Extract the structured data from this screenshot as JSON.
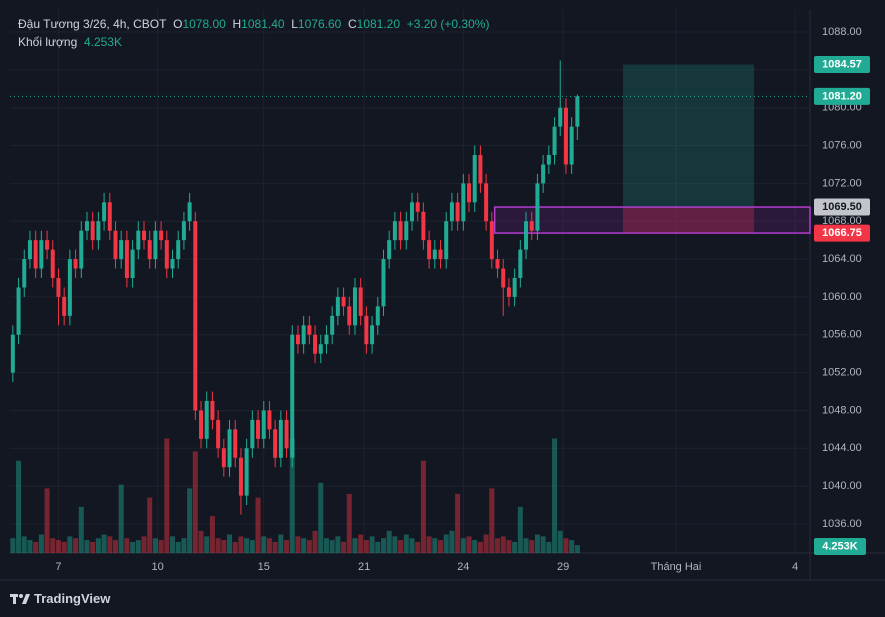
{
  "chart_data": {
    "type": "candlestick",
    "legend": {
      "symbol": "Đậu Tương 3/26, 4h, CBOT",
      "open_label": "O",
      "open": "1078.00",
      "high_label": "H",
      "high": "1081.40",
      "low_label": "L",
      "low": "1076.60",
      "close_label": "C",
      "close": "1081.20",
      "change": "+3.20 (+0.30%)",
      "volume_label": "Khối lượng",
      "volume": "4.253K"
    },
    "brand": "TradingView",
    "up_color": "#22ab94",
    "down_color": "#f23645",
    "grid": true,
    "xlim": [
      -0.5,
      139.8
    ],
    "xticks": [
      {
        "value": 8,
        "label": "7"
      },
      {
        "value": 25.4,
        "label": "10"
      },
      {
        "value": 44,
        "label": "15"
      },
      {
        "value": 61.6,
        "label": "21"
      },
      {
        "value": 79,
        "label": "24"
      },
      {
        "value": 96.5,
        "label": "29"
      },
      {
        "value": 116.3,
        "label": "Tháng Hai"
      },
      {
        "value": 137.2,
        "label": "4"
      }
    ],
    "ylim": [
      1032.93,
      1090.33
    ],
    "yticks": [
      {
        "value": 1036,
        "label": "1036.00"
      },
      {
        "value": 1040,
        "label": "1040.00"
      },
      {
        "value": 1044,
        "label": "1044.00"
      },
      {
        "value": 1048,
        "label": "1048.00"
      },
      {
        "value": 1052,
        "label": "1052.00"
      },
      {
        "value": 1056,
        "label": "1056.00"
      },
      {
        "value": 1060,
        "label": "1060.00"
      },
      {
        "value": 1064,
        "label": "1064.00"
      },
      {
        "value": 1068,
        "label": "1068.00"
      },
      {
        "value": 1072,
        "label": "1072.00"
      },
      {
        "value": 1076,
        "label": "1076.00"
      },
      {
        "value": 1080,
        "label": "1080.00"
      },
      {
        "value": 1084,
        "label": "1084.00"
      },
      {
        "value": 1088,
        "label": "1088.00"
      }
    ],
    "open": [
      1052,
      1056,
      1061,
      1064,
      1066,
      1063,
      1066,
      1065,
      1062,
      1060,
      1058,
      1064,
      1063,
      1067,
      1068,
      1066,
      1068,
      1070,
      1067,
      1064,
      1066,
      1062,
      1065,
      1067,
      1066,
      1064,
      1067,
      1066,
      1063,
      1064,
      1066,
      1068,
      1068,
      1048,
      1045,
      1049,
      1047,
      1044,
      1042,
      1046,
      1043,
      1039,
      1044,
      1047,
      1045,
      1048,
      1046,
      1043,
      1047,
      1043,
      1056,
      1055,
      1057,
      1056,
      1054,
      1055,
      1056,
      1058,
      1060,
      1059,
      1057,
      1061,
      1058,
      1055,
      1057,
      1059,
      1064,
      1066,
      1068,
      1066,
      1068,
      1070,
      1069,
      1066,
      1064,
      1065,
      1064,
      1068,
      1070,
      1068,
      1072,
      1070,
      1075,
      1072,
      1068,
      1064,
      1063,
      1061,
      1060,
      1062,
      1065,
      1068,
      1067,
      1072,
      1074,
      1075,
      1078,
      1080,
      1074,
      1078
    ],
    "high": [
      1057,
      1062,
      1065,
      1067,
      1067,
      1067,
      1067,
      1066,
      1063,
      1061,
      1065,
      1065,
      1068,
      1069,
      1069,
      1069,
      1071,
      1071,
      1068,
      1067,
      1067,
      1066,
      1068,
      1068,
      1067,
      1068,
      1068,
      1067,
      1065,
      1067,
      1069,
      1071,
      1069,
      1049,
      1050,
      1050,
      1048,
      1045,
      1047,
      1047,
      1044,
      1045,
      1048,
      1048,
      1049,
      1049,
      1047,
      1048,
      1048,
      1057,
      1057,
      1058,
      1058,
      1057,
      1056,
      1057,
      1059,
      1061,
      1061,
      1060,
      1062,
      1062,
      1059,
      1058,
      1060,
      1065,
      1067,
      1069,
      1069,
      1069,
      1071,
      1071,
      1070,
      1067,
      1066,
      1066,
      1069,
      1071,
      1071,
      1073,
      1073,
      1076,
      1076,
      1073,
      1069,
      1065,
      1064,
      1062,
      1063,
      1066,
      1069,
      1069,
      1073,
      1075,
      1076,
      1079,
      1085,
      1081,
      1079,
      1081.4
    ],
    "low": [
      1051,
      1055,
      1060,
      1063,
      1062,
      1062,
      1064,
      1061,
      1057,
      1057,
      1057,
      1062,
      1062,
      1066,
      1065,
      1065,
      1067,
      1066,
      1063,
      1063,
      1061,
      1061,
      1064,
      1065,
      1063,
      1063,
      1065,
      1062,
      1062,
      1063,
      1065,
      1067,
      1047,
      1044,
      1044,
      1046,
      1043,
      1041,
      1041,
      1042,
      1037,
      1038,
      1043,
      1044,
      1044,
      1045,
      1042,
      1042,
      1043,
      1042,
      1054,
      1054,
      1055,
      1053,
      1053,
      1054,
      1055,
      1057,
      1058,
      1056,
      1056,
      1057,
      1054,
      1054,
      1056,
      1058,
      1063,
      1065,
      1065,
      1065,
      1067,
      1068,
      1065,
      1063,
      1063,
      1063,
      1063,
      1067,
      1067,
      1067,
      1069,
      1069,
      1071,
      1067,
      1063,
      1062,
      1058,
      1059,
      1059,
      1061,
      1064,
      1066,
      1066,
      1071,
      1073,
      1074,
      1077,
      1073,
      1073,
      1076.6
    ],
    "close": [
      1056,
      1061,
      1064,
      1066,
      1063,
      1066,
      1065,
      1062,
      1060,
      1058,
      1064,
      1063,
      1067,
      1068,
      1066,
      1068,
      1070,
      1067,
      1064,
      1066,
      1062,
      1065,
      1067,
      1066,
      1064,
      1067,
      1066,
      1063,
      1064,
      1066,
      1068,
      1070,
      1048,
      1045,
      1049,
      1047,
      1044,
      1042,
      1046,
      1043,
      1039,
      1044,
      1047,
      1045,
      1048,
      1046,
      1043,
      1047,
      1044,
      1056,
      1055,
      1057,
      1056,
      1054,
      1055,
      1056,
      1058,
      1060,
      1059,
      1057,
      1061,
      1058,
      1055,
      1057,
      1059,
      1064,
      1066,
      1068,
      1066,
      1068,
      1070,
      1069,
      1066,
      1064,
      1065,
      1064,
      1068,
      1070,
      1068,
      1072,
      1070,
      1075,
      1072,
      1068,
      1064,
      1063,
      1061,
      1060,
      1062,
      1065,
      1068,
      1067,
      1072,
      1074,
      1075,
      1078,
      1080,
      1074,
      1078,
      1081.2
    ],
    "volume": [
      8,
      50,
      9,
      7,
      6,
      10,
      35,
      8,
      7,
      6,
      9,
      8,
      25,
      7,
      6,
      8,
      10,
      9,
      7,
      37,
      8,
      6,
      7,
      9,
      30,
      8,
      7,
      62,
      9,
      6,
      8,
      35,
      55,
      12,
      9,
      20,
      8,
      7,
      10,
      6,
      9,
      8,
      7,
      30,
      9,
      8,
      6,
      10,
      7,
      62,
      9,
      8,
      7,
      12,
      38,
      8,
      7,
      9,
      6,
      32,
      8,
      10,
      7,
      9,
      6,
      8,
      12,
      9,
      7,
      10,
      8,
      6,
      50,
      9,
      8,
      7,
      10,
      12,
      32,
      8,
      9,
      7,
      6,
      10,
      35,
      8,
      9,
      7,
      6,
      25,
      8,
      7,
      10,
      9,
      6,
      62,
      12,
      8,
      7,
      4.253
    ],
    "volume_lim": [
      0,
      65
    ],
    "price_labels": [
      {
        "value": 1084.57,
        "label": "1084.57",
        "color": "#22ab94",
        "text_color": "#ffffff"
      },
      {
        "value": 1081.2,
        "label": "1081.20",
        "color": "#22ab94",
        "text_color": "#ffffff"
      },
      {
        "value": 1069.5,
        "label": "1069.50",
        "color": "#c3c5cc",
        "text_color": "#131722"
      },
      {
        "value": 1066.75,
        "label": "1066.75",
        "color": "#f23645",
        "text_color": "#ffffff"
      }
    ]
  }
}
